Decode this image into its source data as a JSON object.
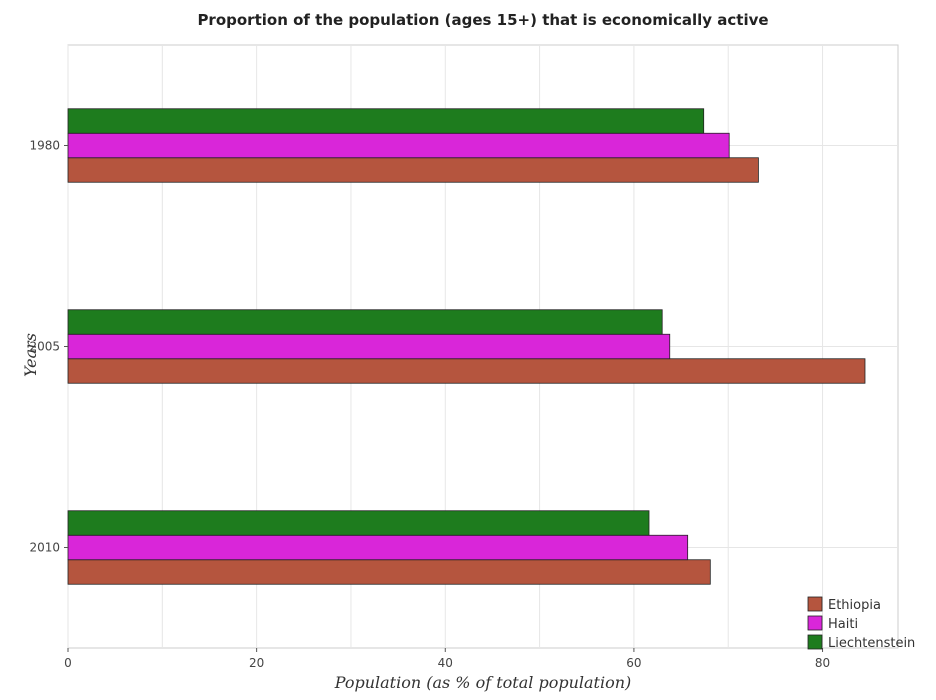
{
  "chart_data": {
    "type": "bar",
    "orientation": "horizontal",
    "title": "Proportion of the population (ages 15+) that is economically active",
    "xlabel": "Population (as % of total population)",
    "ylabel": "Years",
    "categories": [
      "1980",
      "2005",
      "2010"
    ],
    "series": [
      {
        "name": "Ethiopia",
        "color": "#b5553e",
        "values": [
          73.2,
          84.5,
          68.1
        ]
      },
      {
        "name": "Haiti",
        "color": "#d926d9",
        "values": [
          70.1,
          63.8,
          65.7
        ]
      },
      {
        "name": "Liechtenstein",
        "color": "#1e7c1e",
        "values": [
          67.4,
          63.0,
          61.6
        ]
      }
    ],
    "xlim": [
      0,
      88
    ],
    "xticks": [
      0,
      20,
      40,
      60,
      80
    ],
    "grid": true,
    "legend_position": "bottom-right"
  }
}
